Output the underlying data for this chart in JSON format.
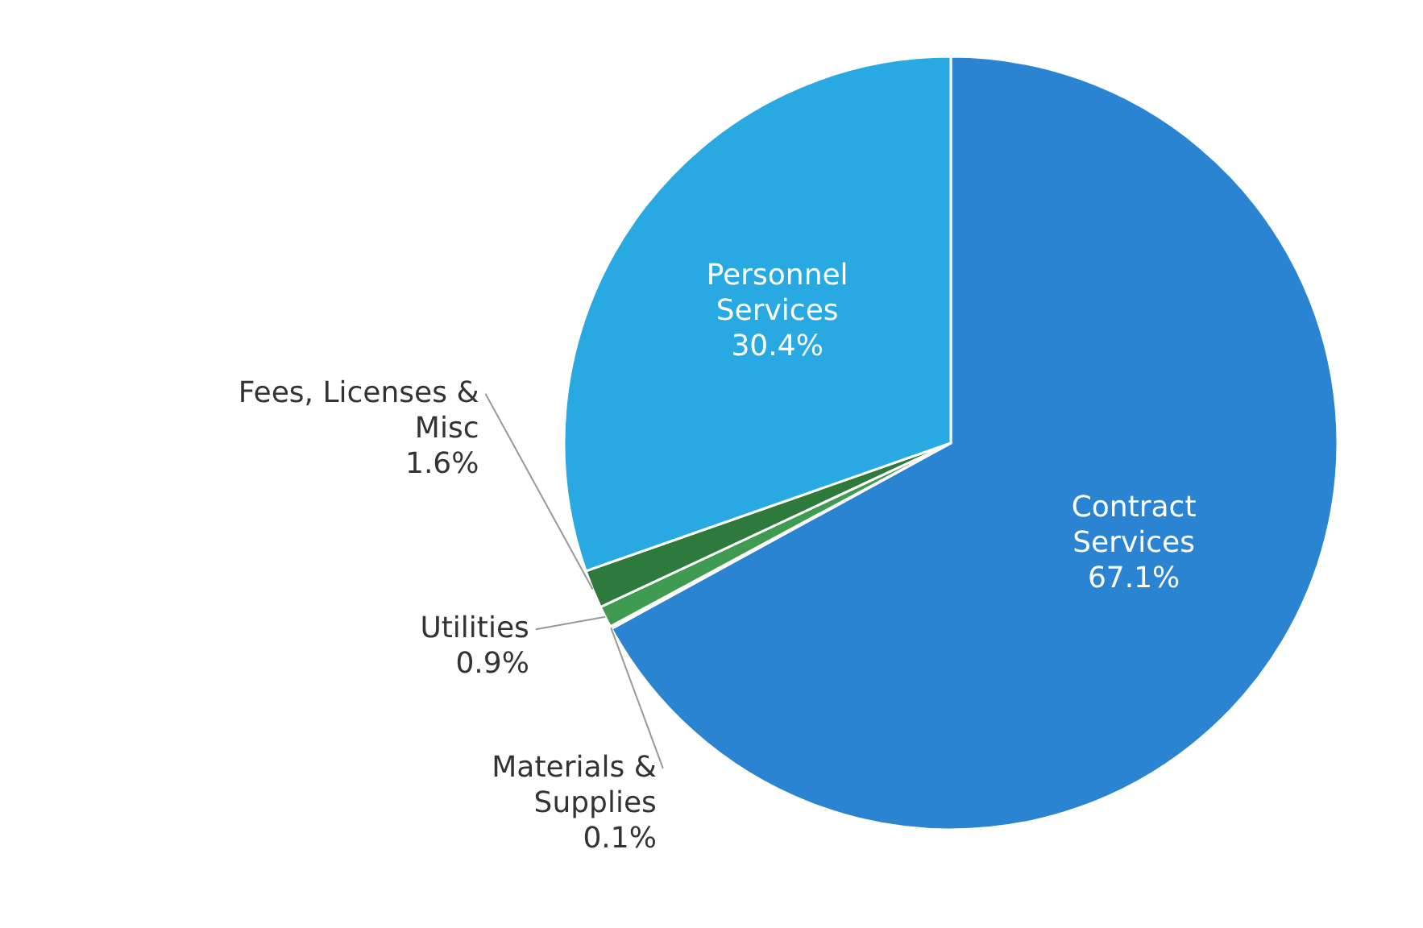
{
  "chart_data": {
    "type": "pie",
    "categories": [
      "Contract Services",
      "Materials & Supplies",
      "Utilities",
      "Fees, Licenses & Misc",
      "Personnel Services"
    ],
    "values": [
      67.1,
      0.1,
      0.9,
      1.6,
      30.4
    ],
    "colors": [
      "#2a84d2",
      "#52c49c",
      "#3f9a52",
      "#2e7a3c",
      "#28a9e2"
    ],
    "value_labels": [
      "67.1%",
      "0.1%",
      "0.9%",
      "1.6%",
      "30.4%"
    ]
  }
}
